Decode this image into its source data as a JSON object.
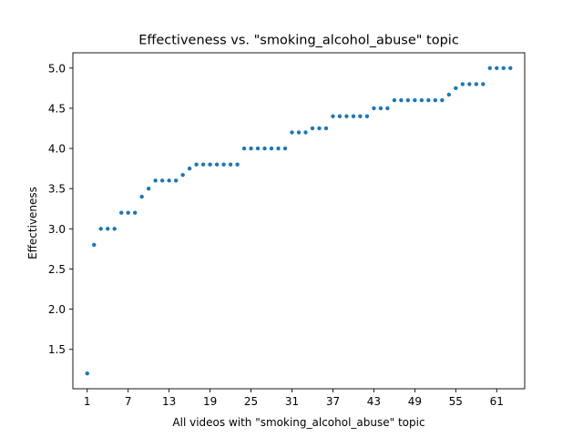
{
  "chart_data": {
    "type": "scatter",
    "title": "Effectiveness vs. \"smoking_alcohol_abuse\" topic",
    "xlabel": "All videos with \"smoking_alcohol_abuse\" topic",
    "ylabel": "Effectiveness",
    "xlim": [
      -1.1,
      65.1
    ],
    "ylim": [
      1.01,
      5.19
    ],
    "xticks": [
      1,
      7,
      13,
      19,
      25,
      31,
      37,
      43,
      49,
      55,
      61
    ],
    "yticks": [
      1.5,
      2.0,
      2.5,
      3.0,
      3.5,
      4.0,
      4.5,
      5.0
    ],
    "ytick_labels": [
      "1.5",
      "2.0",
      "2.5",
      "3.0",
      "3.5",
      "4.0",
      "4.5",
      "5.0"
    ],
    "marker_color": "#1f77b4",
    "grid": false,
    "x": [
      1,
      2,
      3,
      4,
      5,
      6,
      7,
      8,
      9,
      10,
      11,
      12,
      13,
      14,
      15,
      16,
      17,
      18,
      19,
      20,
      21,
      22,
      23,
      24,
      25,
      26,
      27,
      28,
      29,
      30,
      31,
      32,
      33,
      34,
      35,
      36,
      37,
      38,
      39,
      40,
      41,
      42,
      43,
      44,
      45,
      46,
      47,
      48,
      49,
      50,
      51,
      52,
      53,
      54,
      55,
      56,
      57,
      58,
      59,
      60,
      61,
      62,
      63
    ],
    "y": [
      1.2,
      2.8,
      3.0,
      3.0,
      3.0,
      3.2,
      3.2,
      3.2,
      3.4,
      3.5,
      3.6,
      3.6,
      3.6,
      3.6,
      3.67,
      3.75,
      3.8,
      3.8,
      3.8,
      3.8,
      3.8,
      3.8,
      3.8,
      4.0,
      4.0,
      4.0,
      4.0,
      4.0,
      4.0,
      4.0,
      4.2,
      4.2,
      4.2,
      4.25,
      4.25,
      4.25,
      4.4,
      4.4,
      4.4,
      4.4,
      4.4,
      4.4,
      4.5,
      4.5,
      4.5,
      4.6,
      4.6,
      4.6,
      4.6,
      4.6,
      4.6,
      4.6,
      4.6,
      4.67,
      4.75,
      4.8,
      4.8,
      4.8,
      4.8,
      5.0,
      5.0,
      5.0,
      5.0
    ]
  }
}
